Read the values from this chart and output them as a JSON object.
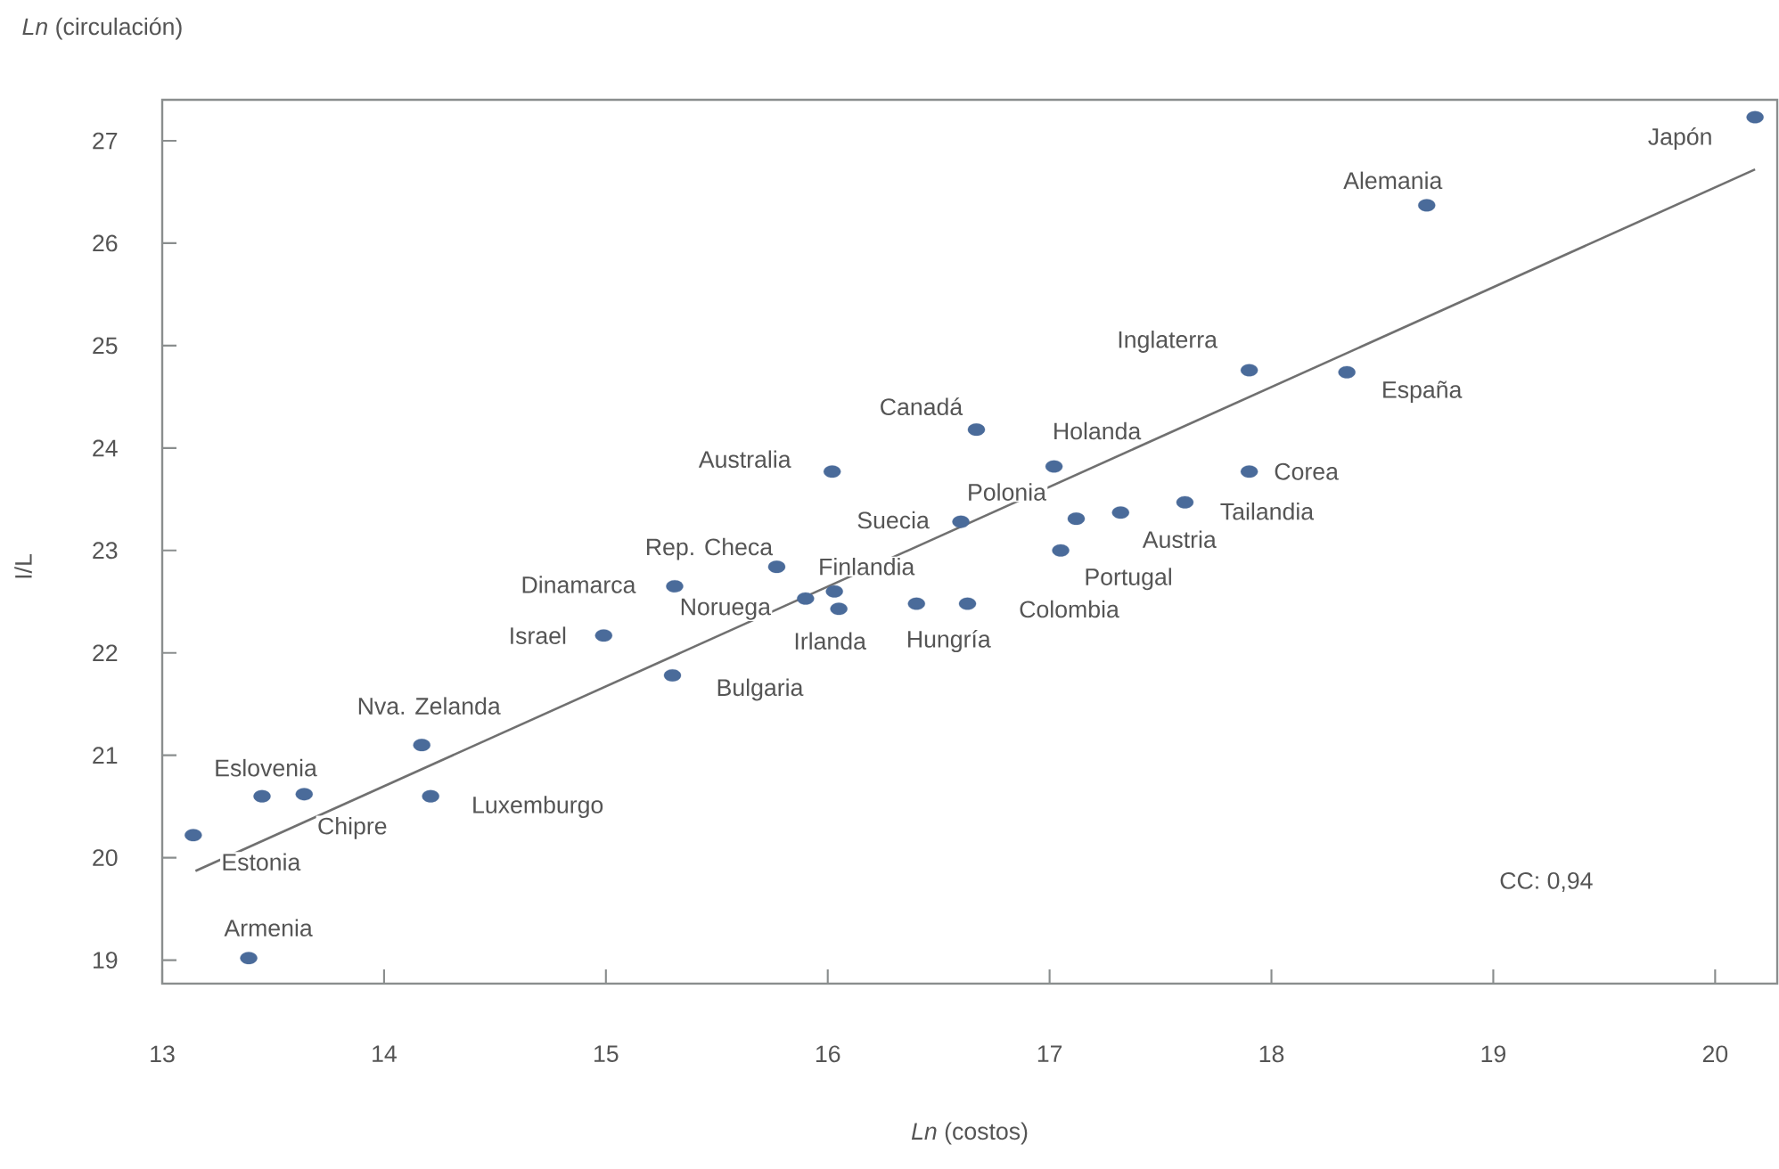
{
  "chart_data": {
    "type": "scatter",
    "xlabel": "*Ln* (costos)",
    "ylabel": "*Ln* (circulación)",
    "xlim": [
      13,
      20.28
    ],
    "ylim": [
      18.77,
      27.4
    ],
    "xticks": [
      13,
      14,
      15,
      16,
      17,
      18,
      19,
      20
    ],
    "yticks": [
      19,
      20,
      21,
      22,
      23,
      24,
      25,
      26,
      27
    ],
    "series": [
      {
        "color": "#4a6b9a",
        "marker": "circle",
        "x": [
          20.18,
          18.7,
          17.9,
          18.34,
          16.67,
          17.02,
          17.9,
          17.61,
          17.12,
          17.32,
          16.6,
          17.05,
          16.02,
          15.77,
          15.31,
          15.9,
          16.03,
          16.05,
          14.99,
          15.3,
          16.4,
          16.63,
          14.17,
          13.45,
          13.64,
          14.21,
          13.14,
          13.39
        ],
        "values": [
          27.23,
          26.37,
          24.76,
          24.74,
          24.18,
          23.82,
          23.77,
          23.47,
          23.31,
          23.37,
          23.28,
          23.0,
          23.77,
          22.84,
          22.65,
          22.53,
          22.6,
          22.43,
          22.17,
          21.78,
          22.48,
          22.48,
          21.1,
          20.6,
          20.62,
          20.6,
          20.22,
          19.02
        ]
      },
      {
        "type": "line",
        "color": "#707070",
        "marker": "none",
        "line_style": "solid",
        "x": [
          13.15,
          20.18
        ],
        "values": [
          19.87,
          26.72
        ]
      }
    ],
    "annotations": [
      {
        "text": "Japón",
        "x": 20.18,
        "y": 27.23
      },
      {
        "text": "Alemania",
        "x": 18.7,
        "y": 26.37
      },
      {
        "text": "Inglaterra",
        "x": 17.9,
        "y": 24.76
      },
      {
        "text": "España",
        "x": 18.34,
        "y": 24.74
      },
      {
        "text": "Canadá",
        "x": 16.67,
        "y": 24.18
      },
      {
        "text": "Holanda",
        "x": 17.02,
        "y": 23.82
      },
      {
        "text": "Corea",
        "x": 17.9,
        "y": 23.77
      },
      {
        "text": "Tailandia",
        "x": 17.61,
        "y": 23.47
      },
      {
        "text": "Polonia",
        "x": 17.12,
        "y": 23.31
      },
      {
        "text": "Austria",
        "x": 17.32,
        "y": 23.37
      },
      {
        "text": "Suecia",
        "x": 16.6,
        "y": 23.28
      },
      {
        "text": "Portugal",
        "x": 17.05,
        "y": 23.0
      },
      {
        "text": "Australia",
        "x": 16.02,
        "y": 23.77
      },
      {
        "text": "Rep. Checa",
        "x": 15.77,
        "y": 22.84
      },
      {
        "text": "Dinamarca",
        "x": 15.31,
        "y": 22.65
      },
      {
        "text": "Noruega",
        "x": 15.9,
        "y": 22.53
      },
      {
        "text": "Finlandia",
        "x": 16.03,
        "y": 22.6
      },
      {
        "text": "Irlanda",
        "x": 16.05,
        "y": 22.43
      },
      {
        "text": "Israel",
        "x": 14.99,
        "y": 22.17
      },
      {
        "text": "Bulgaria",
        "x": 15.3,
        "y": 21.78
      },
      {
        "text": "Hungría",
        "x": 16.4,
        "y": 22.48
      },
      {
        "text": "Colombia",
        "x": 16.63,
        "y": 22.48
      },
      {
        "text": "Nva. Zelanda",
        "x": 14.17,
        "y": 21.1
      },
      {
        "text": "Eslovenia",
        "x": 13.45,
        "y": 20.6
      },
      {
        "text": "Chipre",
        "x": 13.64,
        "y": 20.62
      },
      {
        "text": "Luxemburgo",
        "x": 14.21,
        "y": 20.6
      },
      {
        "text": "Estonia",
        "x": 13.14,
        "y": 20.22
      },
      {
        "text": "Armenia",
        "x": 13.39,
        "y": 19.02
      },
      "I/L",
      "CC: 0,94"
    ]
  }
}
